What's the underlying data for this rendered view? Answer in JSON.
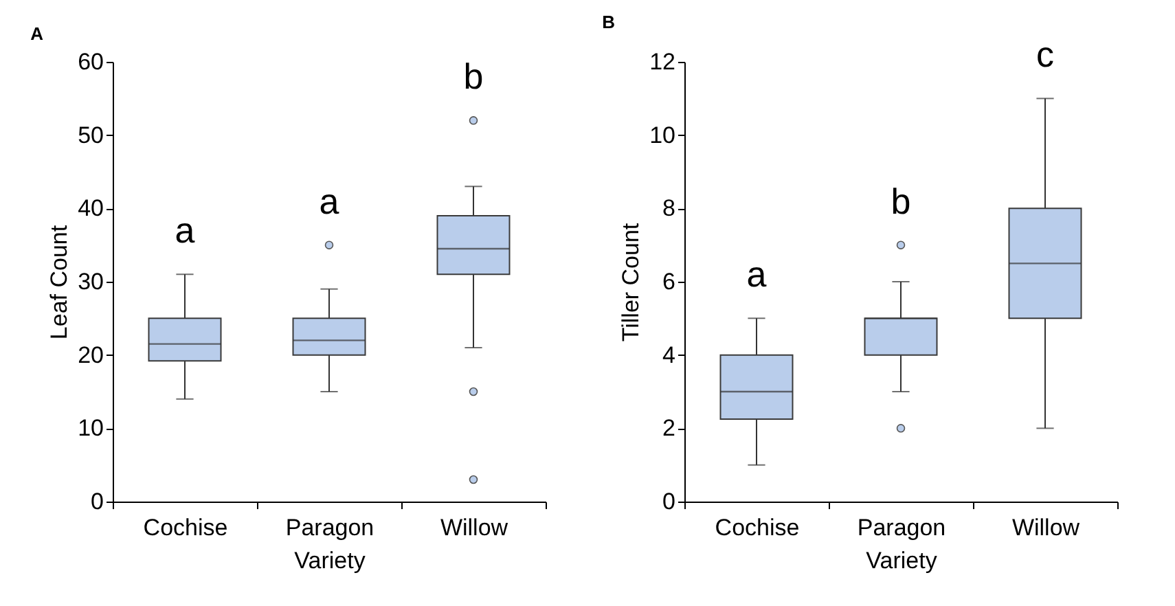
{
  "chart_data": [
    {
      "type": "box",
      "title": "A",
      "xlabel": "Variety",
      "ylabel": "Leaf Count",
      "categories": [
        "Cochise",
        "Paragon",
        "Willow"
      ],
      "ylim": [
        0,
        60
      ],
      "yticks": [
        0,
        10,
        20,
        30,
        40,
        50,
        60
      ],
      "grid": false,
      "series": [
        {
          "color": "#b9cdeb",
          "boxes": [
            {
              "low": 14,
              "q1": 19.2,
              "median": 21.5,
              "q3": 25,
              "high": 31
            },
            {
              "low": 15,
              "q1": 20,
              "median": 22,
              "q3": 25,
              "high": 29,
              "outliers": [
                35
              ]
            },
            {
              "low": 21,
              "q1": 31,
              "median": 34.5,
              "q3": 39,
              "high": 43,
              "outliers": [
                52,
                15,
                3
              ]
            }
          ]
        }
      ],
      "annotations": [
        "a",
        "a",
        "b"
      ]
    },
    {
      "type": "box",
      "title": "B",
      "xlabel": "Variety",
      "ylabel": "Tiller Count",
      "categories": [
        "Cochise",
        "Paragon",
        "Willow"
      ],
      "ylim": [
        0,
        12
      ],
      "yticks": [
        0,
        2,
        4,
        6,
        8,
        10,
        12
      ],
      "grid": false,
      "series": [
        {
          "color": "#b9cdeb",
          "boxes": [
            {
              "low": 1,
              "q1": 2.25,
              "median": 3,
              "q3": 4,
              "high": 5
            },
            {
              "low": 3,
              "q1": 4,
              "median": 5,
              "q3": 5,
              "high": 6,
              "outliers": [
                7,
                2
              ]
            },
            {
              "low": 2,
              "q1": 5,
              "median": 6.5,
              "q3": 8,
              "high": 11
            }
          ]
        }
      ],
      "annotations": [
        "a",
        "b",
        "c"
      ]
    }
  ]
}
